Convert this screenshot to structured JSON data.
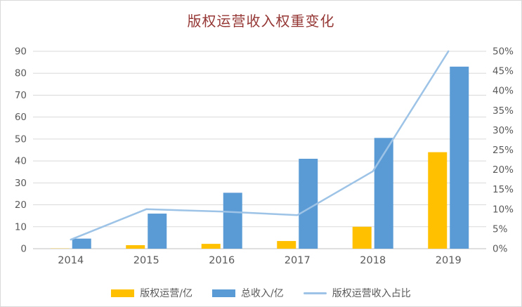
{
  "title": "版权运营收入权重变化",
  "chart_data": {
    "type": "bar",
    "title": "版权运营收入权重变化",
    "categories": [
      "2014",
      "2015",
      "2016",
      "2017",
      "2018",
      "2019"
    ],
    "series": [
      {
        "key": "copyright-revenue",
        "name": "版权运营/亿",
        "kind": "bar",
        "axis": "left",
        "color": "#FFC000",
        "values": [
          0.1,
          1.6,
          2.2,
          3.5,
          10,
          44
        ]
      },
      {
        "key": "total-revenue",
        "name": "总收入/亿",
        "kind": "bar",
        "axis": "left",
        "color": "#5B9BD5",
        "values": [
          4.6,
          16,
          25.5,
          41,
          50.5,
          83
        ]
      },
      {
        "key": "copyright-ratio",
        "name": "版权运营收入占比",
        "kind": "line",
        "axis": "right",
        "color": "#9DC3E6",
        "values": [
          2.3,
          10,
          9.4,
          8.5,
          19.6,
          50
        ]
      }
    ],
    "left_axis": {
      "min": 0,
      "max": 90,
      "step": 10,
      "tick_labels": [
        "0",
        "10",
        "20",
        "30",
        "40",
        "50",
        "60",
        "70",
        "80",
        "90"
      ]
    },
    "right_axis": {
      "min": 0,
      "max": 50,
      "step": 5,
      "tick_labels": [
        "0%",
        "5%",
        "10%",
        "15%",
        "20%",
        "25%",
        "30%",
        "35%",
        "40%",
        "45%",
        "50%"
      ]
    },
    "grid": true,
    "legend_position": "bottom"
  },
  "colors": {
    "title": "#953735",
    "axis_text": "#595959",
    "gridline": "#D9D9D9",
    "axis_line": "#BFBFBF",
    "background": "#FFFFFF",
    "border": "#D9D9D9"
  }
}
